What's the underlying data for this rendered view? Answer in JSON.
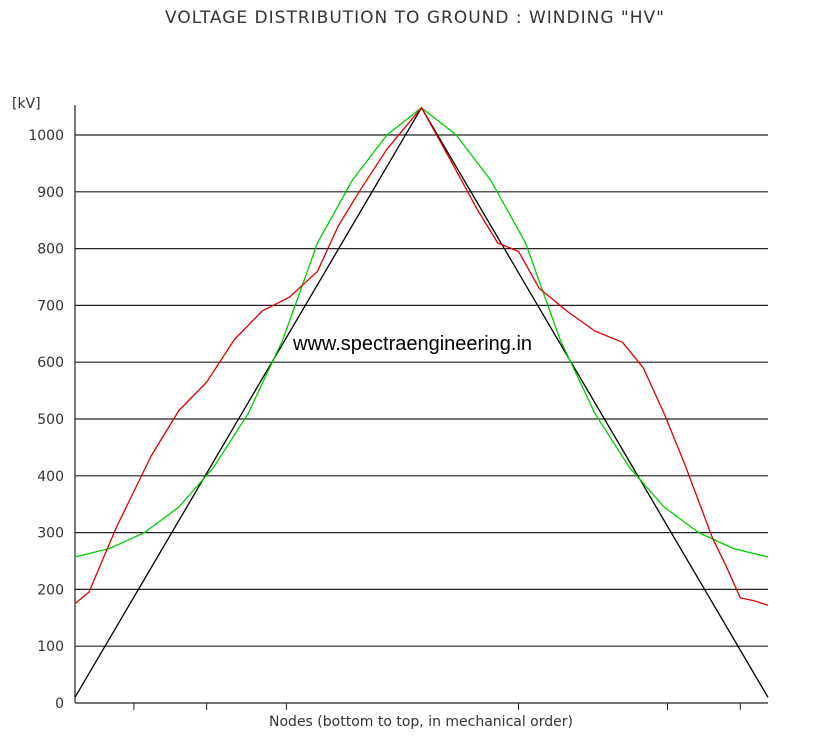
{
  "chart_data": {
    "type": "line",
    "title": "VOLTAGE DISTRIBUTION TO GROUND :  WINDING \"HV\"",
    "xlabel": "Nodes (bottom to top, in mechanical order)",
    "ylabel": "[kV]",
    "ylim": [
      0,
      1050
    ],
    "yticks": [
      0,
      100,
      200,
      300,
      400,
      500,
      600,
      700,
      800,
      900,
      1000
    ],
    "xlim": [
      0,
      100
    ],
    "grid": "horizontal",
    "legend": "none",
    "series": [
      {
        "color": "#000000",
        "x": [
          0,
          50,
          100
        ],
        "values": [
          10,
          1048,
          10
        ]
      },
      {
        "color": "#00cc00",
        "x": [
          0,
          5,
          10,
          15,
          20,
          25,
          30,
          35,
          40,
          45,
          50,
          55,
          60,
          65,
          70,
          75,
          80,
          85,
          90,
          95,
          100
        ],
        "values": [
          257,
          272,
          300,
          345,
          415,
          510,
          640,
          810,
          920,
          1000,
          1048,
          1000,
          920,
          810,
          640,
          510,
          415,
          345,
          300,
          272,
          257
        ]
      },
      {
        "color": "#dd0000",
        "x": [
          0,
          2,
          6,
          11,
          15,
          19,
          23,
          27,
          31,
          35,
          38,
          41,
          45,
          50,
          54,
          58,
          61,
          64,
          67,
          71,
          75,
          79,
          82,
          85,
          88,
          92,
          94,
          96,
          98,
          100
        ],
        "values": [
          175,
          195,
          310,
          435,
          515,
          565,
          640,
          690,
          715,
          760,
          840,
          900,
          975,
          1048,
          960,
          870,
          810,
          795,
          730,
          690,
          655,
          635,
          590,
          510,
          420,
          290,
          240,
          185,
          180,
          172
        ]
      }
    ]
  },
  "watermark": "www.spectraengineering.in"
}
